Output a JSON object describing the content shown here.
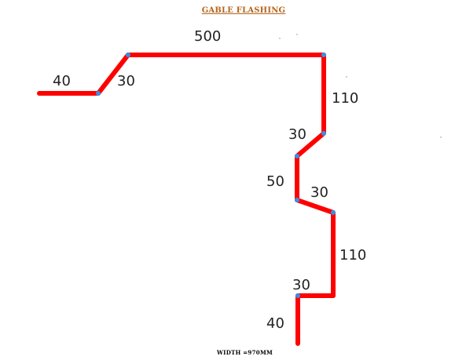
{
  "title": "GABLE FLASHING",
  "footer": "WIDTH =970MM",
  "colors": {
    "profile": "#ff0000",
    "node": "#3a8fe6",
    "title": "#b5651d",
    "text": "#222222"
  },
  "segments": [
    {
      "length_mm": 40,
      "label": "40"
    },
    {
      "length_mm": 30,
      "label": "30"
    },
    {
      "length_mm": 500,
      "label": "500"
    },
    {
      "length_mm": 110,
      "label": "110"
    },
    {
      "length_mm": 30,
      "label": "30"
    },
    {
      "length_mm": 50,
      "label": "50"
    },
    {
      "length_mm": 30,
      "label": "30"
    },
    {
      "length_mm": 110,
      "label": "110"
    },
    {
      "length_mm": 30,
      "label": "30"
    },
    {
      "length_mm": 40,
      "label": "40"
    }
  ]
}
